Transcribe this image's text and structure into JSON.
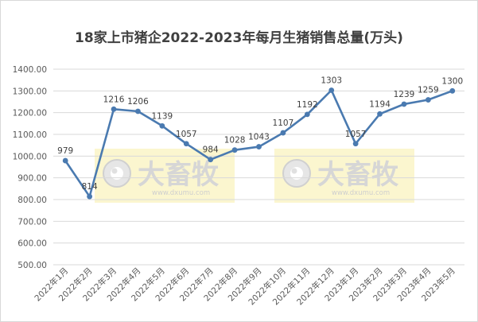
{
  "chart_data": {
    "type": "line",
    "title": "18家上市猪企2022-2023年每月生猪销售总量(万头)",
    "categories": [
      "2022年1月",
      "2022年2月",
      "2022年3月",
      "2022年4月",
      "2022年5月",
      "2022年6月",
      "2022年7月",
      "2022年8月",
      "2022年9月",
      "2022年10月",
      "2022年11月",
      "2022年12月",
      "2023年1月",
      "2023年2月",
      "2023年3月",
      "2023年4月",
      "2023年5月"
    ],
    "series": [
      {
        "values": [
          979,
          814,
          1216,
          1206,
          1139,
          1057,
          984,
          1028,
          1043,
          1107,
          1192,
          1303,
          1057,
          1194,
          1239,
          1259,
          1300
        ]
      }
    ],
    "data_labels": [
      "979",
      "814",
      "1216",
      "1206",
      "1139",
      "1057",
      "984",
      "1028",
      "1043",
      "1107",
      "1192",
      "1303",
      "1057",
      "1194",
      "1239",
      "1259",
      "1300"
    ],
    "y_ticks": [
      "500.00",
      "600.00",
      "700.00",
      "800.00",
      "900.00",
      "1000.00",
      "1100.00",
      "1200.00",
      "1300.00",
      "1400.00"
    ],
    "ylim": [
      500,
      1400
    ],
    "grid": true,
    "legend": "none",
    "line_color": "#4a7ab0"
  },
  "watermark": {
    "text": "大畜牧",
    "url": "www.dxumu.com",
    "bg_color": "#fbf6cf"
  }
}
